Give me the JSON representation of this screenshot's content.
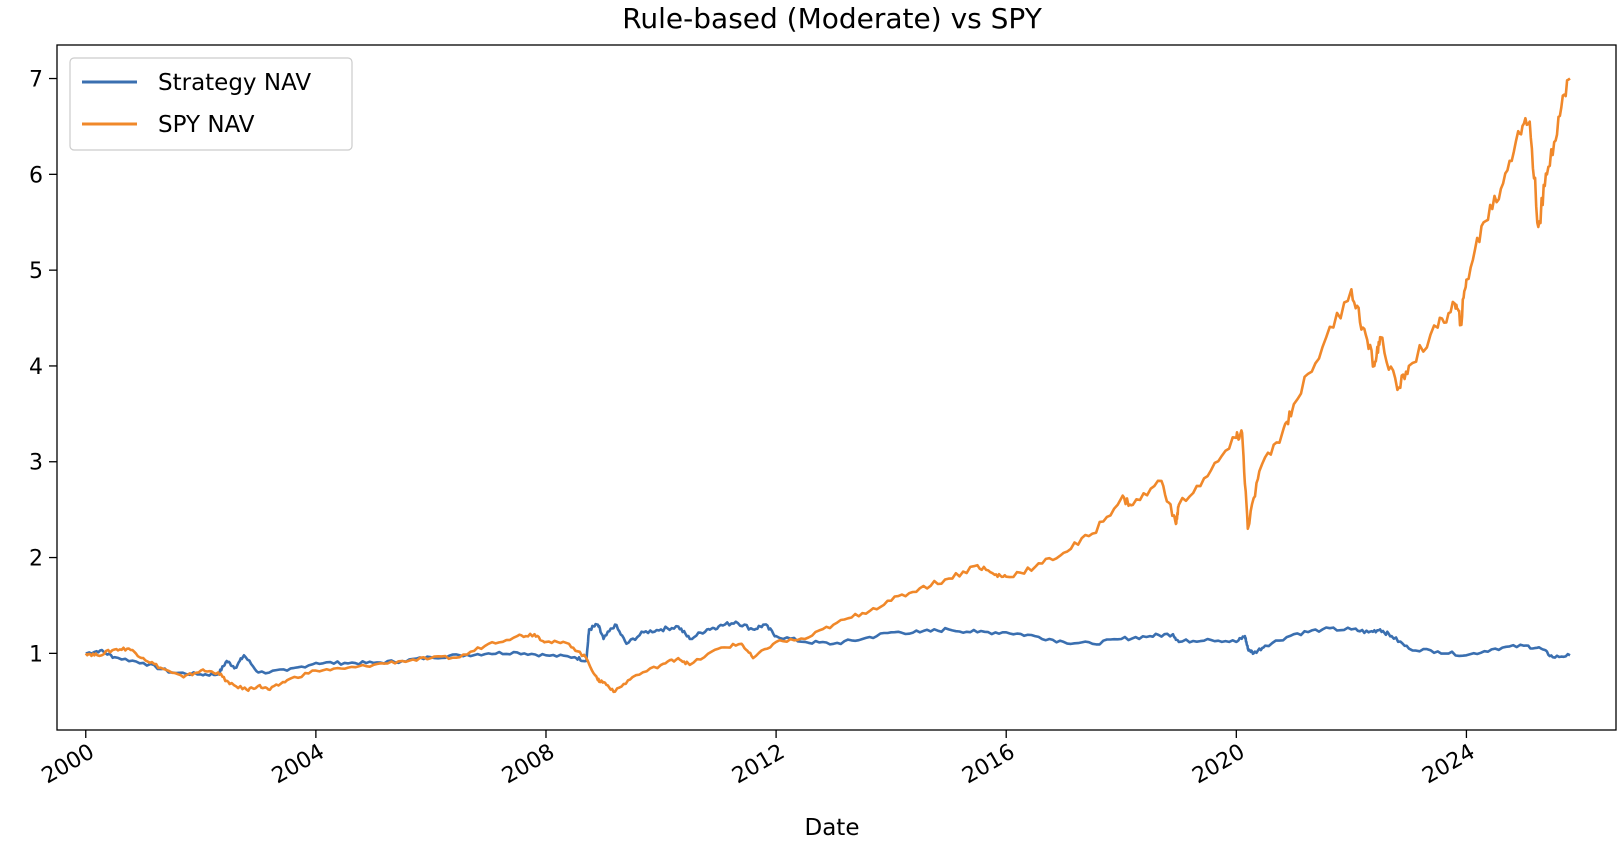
{
  "chart_data": {
    "type": "line",
    "title": "Rule-based (Moderate) vs SPY",
    "xlabel": "Date",
    "ylabel": "",
    "xlim": [
      1999.5,
      2026.6
    ],
    "ylim": [
      0.2,
      7.35
    ],
    "x_ticks": [
      2000,
      2004,
      2008,
      2012,
      2016,
      2020,
      2024
    ],
    "y_ticks": [
      1,
      2,
      3,
      4,
      5,
      6,
      7
    ],
    "grid": false,
    "legend_position": "upper left",
    "series": [
      {
        "name": "Strategy NAV",
        "color": "#3a6fb0",
        "points": [
          [
            2000.0,
            1.0
          ],
          [
            2000.25,
            1.03
          ],
          [
            2000.5,
            0.96
          ],
          [
            2001.0,
            0.9
          ],
          [
            2001.5,
            0.8
          ],
          [
            2002.0,
            0.78
          ],
          [
            2002.3,
            0.78
          ],
          [
            2002.45,
            0.92
          ],
          [
            2002.6,
            0.85
          ],
          [
            2002.75,
            0.98
          ],
          [
            2003.0,
            0.8
          ],
          [
            2003.5,
            0.82
          ],
          [
            2004.0,
            0.9
          ],
          [
            2004.5,
            0.9
          ],
          [
            2005.0,
            0.9
          ],
          [
            2005.5,
            0.92
          ],
          [
            2006.0,
            0.96
          ],
          [
            2006.5,
            0.98
          ],
          [
            2007.0,
            1.0
          ],
          [
            2007.5,
            1.01
          ],
          [
            2008.0,
            0.98
          ],
          [
            2008.5,
            0.96
          ],
          [
            2008.7,
            0.92
          ],
          [
            2008.75,
            1.25
          ],
          [
            2008.9,
            1.3
          ],
          [
            2009.0,
            1.15
          ],
          [
            2009.2,
            1.3
          ],
          [
            2009.4,
            1.1
          ],
          [
            2009.7,
            1.22
          ],
          [
            2010.0,
            1.25
          ],
          [
            2010.3,
            1.28
          ],
          [
            2010.5,
            1.15
          ],
          [
            2010.8,
            1.25
          ],
          [
            2011.0,
            1.28
          ],
          [
            2011.3,
            1.33
          ],
          [
            2011.6,
            1.25
          ],
          [
            2011.8,
            1.3
          ],
          [
            2012.0,
            1.18
          ],
          [
            2012.5,
            1.12
          ],
          [
            2013.0,
            1.1
          ],
          [
            2013.5,
            1.15
          ],
          [
            2014.0,
            1.22
          ],
          [
            2014.5,
            1.22
          ],
          [
            2015.0,
            1.25
          ],
          [
            2015.5,
            1.22
          ],
          [
            2016.0,
            1.22
          ],
          [
            2016.5,
            1.18
          ],
          [
            2017.0,
            1.12
          ],
          [
            2017.5,
            1.1
          ],
          [
            2018.0,
            1.15
          ],
          [
            2018.5,
            1.18
          ],
          [
            2018.9,
            1.2
          ],
          [
            2019.0,
            1.12
          ],
          [
            2019.5,
            1.15
          ],
          [
            2020.0,
            1.12
          ],
          [
            2020.15,
            1.18
          ],
          [
            2020.2,
            1.05
          ],
          [
            2020.3,
            1.0
          ],
          [
            2020.5,
            1.08
          ],
          [
            2021.0,
            1.2
          ],
          [
            2021.5,
            1.25
          ],
          [
            2022.0,
            1.25
          ],
          [
            2022.3,
            1.22
          ],
          [
            2022.5,
            1.25
          ],
          [
            2022.7,
            1.18
          ],
          [
            2023.0,
            1.05
          ],
          [
            2023.5,
            1.02
          ],
          [
            2024.0,
            0.98
          ],
          [
            2024.5,
            1.05
          ],
          [
            2025.0,
            1.08
          ],
          [
            2025.3,
            1.05
          ],
          [
            2025.5,
            0.96
          ],
          [
            2025.8,
            0.98
          ]
        ]
      },
      {
        "name": "SPY NAV",
        "color": "#f0882a",
        "points": [
          [
            2000.0,
            1.0
          ],
          [
            2000.2,
            0.98
          ],
          [
            2000.5,
            1.04
          ],
          [
            2000.75,
            1.05
          ],
          [
            2001.0,
            0.95
          ],
          [
            2001.3,
            0.85
          ],
          [
            2001.7,
            0.75
          ],
          [
            2002.0,
            0.82
          ],
          [
            2002.3,
            0.8
          ],
          [
            2002.5,
            0.68
          ],
          [
            2002.8,
            0.62
          ],
          [
            2003.0,
            0.66
          ],
          [
            2003.2,
            0.62
          ],
          [
            2003.5,
            0.72
          ],
          [
            2004.0,
            0.82
          ],
          [
            2004.5,
            0.84
          ],
          [
            2005.0,
            0.88
          ],
          [
            2005.5,
            0.92
          ],
          [
            2006.0,
            0.95
          ],
          [
            2006.5,
            0.96
          ],
          [
            2007.0,
            1.1
          ],
          [
            2007.5,
            1.18
          ],
          [
            2007.8,
            1.2
          ],
          [
            2008.0,
            1.12
          ],
          [
            2008.4,
            1.1
          ],
          [
            2008.7,
            0.95
          ],
          [
            2008.9,
            0.72
          ],
          [
            2009.0,
            0.7
          ],
          [
            2009.2,
            0.6
          ],
          [
            2009.5,
            0.75
          ],
          [
            2010.0,
            0.88
          ],
          [
            2010.3,
            0.95
          ],
          [
            2010.5,
            0.88
          ],
          [
            2011.0,
            1.05
          ],
          [
            2011.4,
            1.1
          ],
          [
            2011.6,
            0.95
          ],
          [
            2012.0,
            1.12
          ],
          [
            2012.5,
            1.15
          ],
          [
            2013.0,
            1.3
          ],
          [
            2013.5,
            1.42
          ],
          [
            2014.0,
            1.55
          ],
          [
            2014.5,
            1.68
          ],
          [
            2015.0,
            1.78
          ],
          [
            2015.5,
            1.92
          ],
          [
            2015.8,
            1.82
          ],
          [
            2016.0,
            1.8
          ],
          [
            2016.5,
            1.9
          ],
          [
            2017.0,
            2.05
          ],
          [
            2017.5,
            2.25
          ],
          [
            2018.0,
            2.62
          ],
          [
            2018.2,
            2.55
          ],
          [
            2018.7,
            2.8
          ],
          [
            2018.95,
            2.35
          ],
          [
            2019.0,
            2.55
          ],
          [
            2019.5,
            2.85
          ],
          [
            2020.0,
            3.25
          ],
          [
            2020.1,
            3.3
          ],
          [
            2020.2,
            2.3
          ],
          [
            2020.4,
            2.9
          ],
          [
            2020.8,
            3.3
          ],
          [
            2021.0,
            3.6
          ],
          [
            2021.5,
            4.2
          ],
          [
            2022.0,
            4.8
          ],
          [
            2022.2,
            4.4
          ],
          [
            2022.4,
            4.0
          ],
          [
            2022.5,
            4.3
          ],
          [
            2022.8,
            3.75
          ],
          [
            2023.0,
            4.0
          ],
          [
            2023.5,
            4.4
          ],
          [
            2023.8,
            4.65
          ],
          [
            2023.9,
            4.45
          ],
          [
            2024.0,
            4.9
          ],
          [
            2024.3,
            5.5
          ],
          [
            2024.6,
            5.85
          ],
          [
            2024.9,
            6.45
          ],
          [
            2025.1,
            6.55
          ],
          [
            2025.25,
            5.45
          ],
          [
            2025.4,
            6.0
          ],
          [
            2025.6,
            6.6
          ],
          [
            2025.8,
            7.0
          ]
        ]
      }
    ]
  }
}
